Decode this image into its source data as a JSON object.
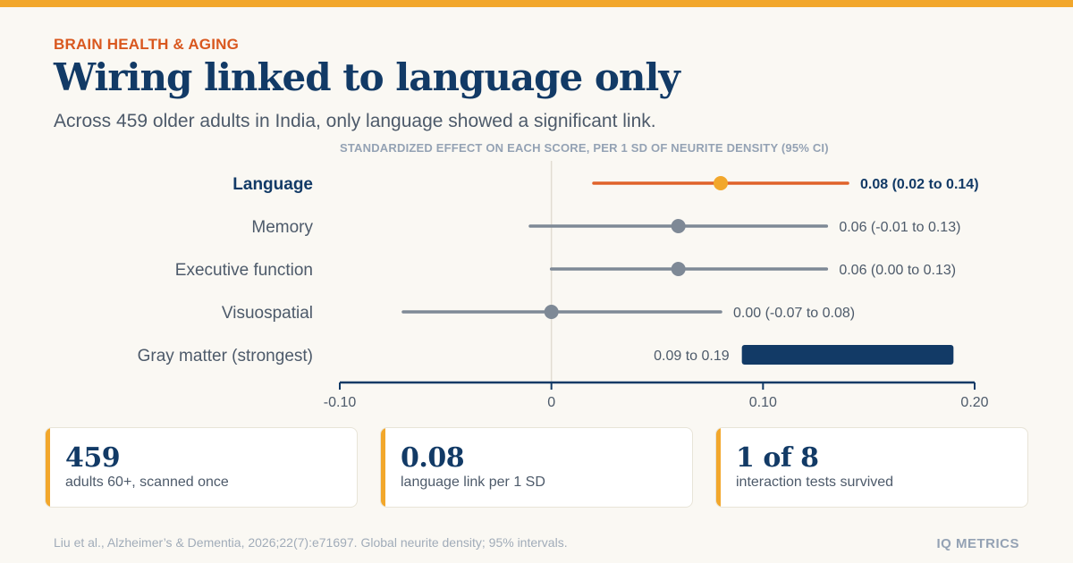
{
  "colors": {
    "top_bar": "#f2a72b",
    "kicker": "#d9581f",
    "navy": "#123a66",
    "highlight": "#e0622a",
    "highlight_dot": "#f2a72b",
    "gray": "#7e8996",
    "card_accent": "#f2a72b"
  },
  "header": {
    "kicker": "BRAIN HEALTH & AGING",
    "title": "Wiring linked to language only",
    "subtitle": "Across 459 older adults in India, only language showed a significant link."
  },
  "chart_data": {
    "type": "forest",
    "title": "STANDARDIZED EFFECT ON EACH SCORE, PER 1 SD OF NEURITE DENSITY (95% CI)",
    "xlim": [
      -0.1,
      0.2
    ],
    "ticks": [
      {
        "value": -0.1,
        "label": "-0.10"
      },
      {
        "value": 0,
        "label": "0"
      },
      {
        "value": 0.1,
        "label": "0.10"
      },
      {
        "value": 0.2,
        "label": "0.20"
      }
    ],
    "zero_line": true,
    "rows": [
      {
        "label": "Language",
        "estimate": 0.08,
        "lower": 0.02,
        "upper": 0.14,
        "annotation": "0.08 (0.02 to 0.14)",
        "style": "highlight"
      },
      {
        "label": "Memory",
        "estimate": 0.06,
        "lower": -0.01,
        "upper": 0.13,
        "annotation": "0.06 (-0.01 to 0.13)",
        "style": "normal"
      },
      {
        "label": "Executive function",
        "estimate": 0.06,
        "lower": 0.0,
        "upper": 0.13,
        "annotation": "0.06 (0.00 to 0.13)",
        "style": "normal"
      },
      {
        "label": "Visuospatial",
        "estimate": 0.0,
        "lower": -0.07,
        "upper": 0.08,
        "annotation": "0.00 (-0.07 to 0.08)",
        "style": "normal"
      },
      {
        "label": "Gray matter (strongest)",
        "estimate": null,
        "lower": 0.09,
        "upper": 0.19,
        "annotation": "0.09 to 0.19",
        "style": "range"
      }
    ]
  },
  "stats": [
    {
      "value": "459",
      "label": "adults 60+, scanned once"
    },
    {
      "value": "0.08",
      "label": "language link per 1 SD"
    },
    {
      "value": "1 of 8",
      "label": "interaction tests survived"
    }
  ],
  "footer": {
    "source": "Liu et al., Alzheimer’s & Dementia, 2026;22(7):e71697. Global neurite density; 95% intervals.",
    "brand": "IQ METRICS"
  }
}
